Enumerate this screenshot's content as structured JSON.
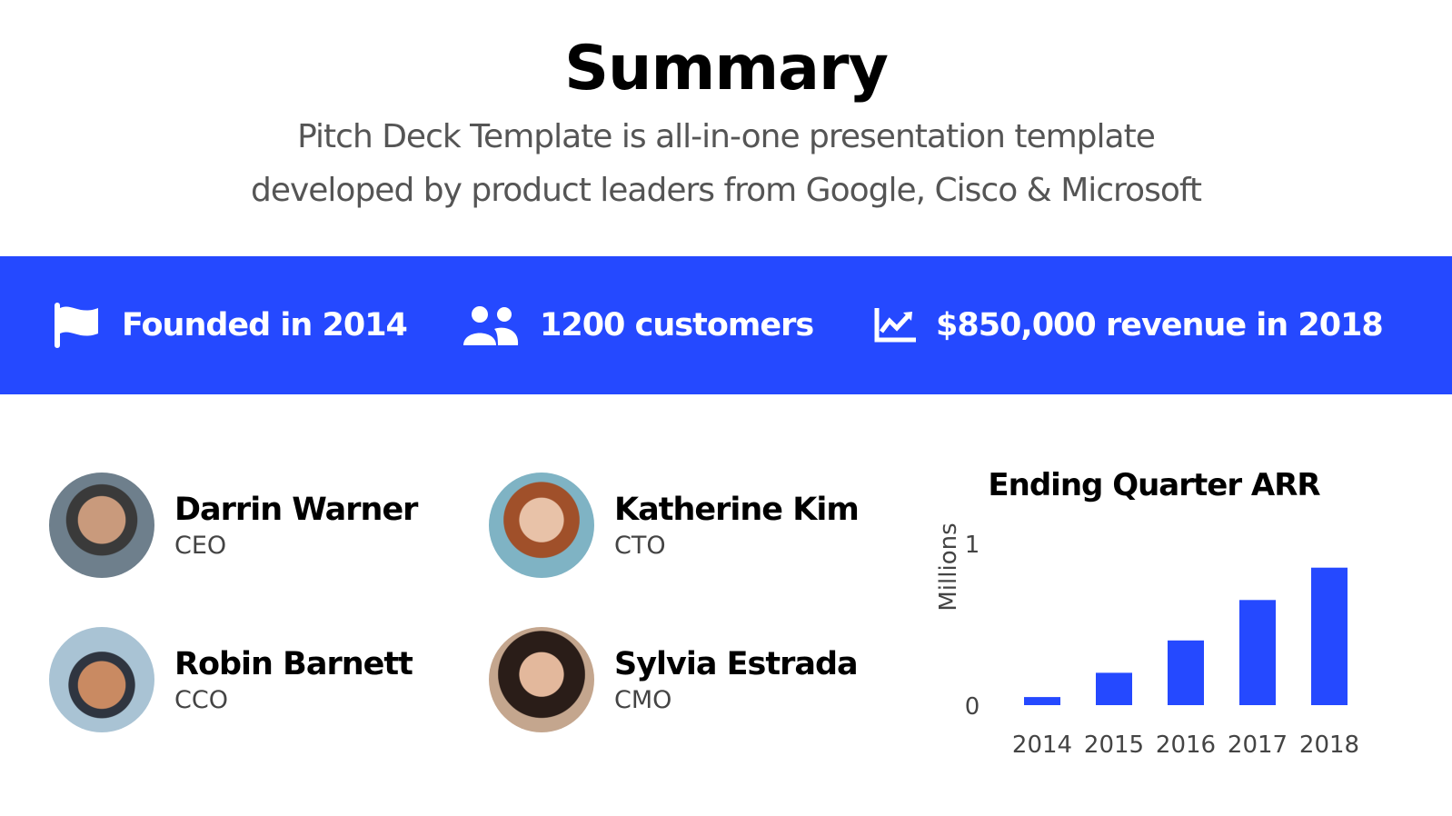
{
  "header": {
    "title": "Summary",
    "subtitle_line1": "Pitch Deck Template is all-in-one presentation template",
    "subtitle_line2": "developed by product leaders from Google, Cisco & Microsoft"
  },
  "stats": [
    {
      "icon": "flag-icon",
      "label": "Founded in 2014"
    },
    {
      "icon": "users-icon",
      "label": "1200 customers"
    },
    {
      "icon": "chart-line-icon",
      "label": "$850,000 revenue in 2018"
    }
  ],
  "team": [
    {
      "name": "Darrin Warner",
      "role": "CEO"
    },
    {
      "name": "Katherine Kim",
      "role": "CTO"
    },
    {
      "name": "Robin Barnett",
      "role": "CCO"
    },
    {
      "name": "Sylvia Estrada",
      "role": "CMO"
    }
  ],
  "colors": {
    "accent": "#2549ff"
  },
  "chart_data": {
    "type": "bar",
    "title": "Ending Quarter ARR",
    "ylabel": "Millions",
    "xlabel": "",
    "categories": [
      "2014",
      "2015",
      "2016",
      "2017",
      "2018"
    ],
    "values": [
      0.05,
      0.2,
      0.4,
      0.65,
      0.85
    ],
    "ylim": [
      0,
      1
    ],
    "yticks": [
      "0",
      "1"
    ],
    "grid": false,
    "legend": "none"
  }
}
